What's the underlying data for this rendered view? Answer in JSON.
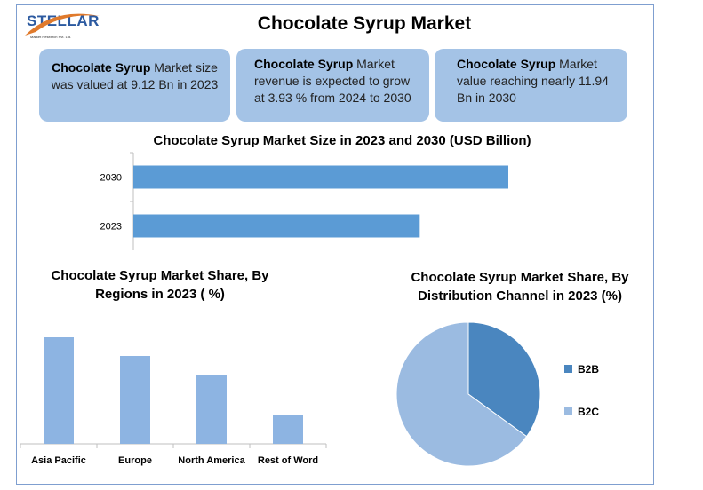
{
  "logo": {
    "name": "STELLAR",
    "tagline": "Market Research Pvt. Ltd."
  },
  "title": "Chocolate Syrup Market",
  "cards": [
    {
      "bold": "Chocolate Syrup",
      "text": " Market size was valued at 9.12 Bn in 2023"
    },
    {
      "bold": "Chocolate Syrup",
      "text": " Market revenue is expected to grow at 3.93 % from 2024 to 2030"
    },
    {
      "bold": "Chocolate Syrup",
      "text": " Market value reaching nearly 11.94 Bn in 2030"
    }
  ],
  "colors": {
    "bar_blue": "#5b9bd5",
    "region_bar": "#8db4e2",
    "b2b": "#4a86bf",
    "b2c": "#9bbbe1"
  },
  "chart_data": [
    {
      "type": "bar",
      "orientation": "horizontal",
      "title": "Chocolate Syrup Market Size in 2023 and 2030 (USD Billion)",
      "categories": [
        "2030",
        "2023"
      ],
      "values": [
        11.94,
        9.12
      ],
      "xlim": [
        0,
        14
      ],
      "grid": false
    },
    {
      "type": "bar",
      "title": "Chocolate Syrup Market Share, By Regions in 2023 ( %)",
      "categories": [
        "Asia Pacific",
        "Europe",
        "North America",
        "Rest of Word"
      ],
      "values": [
        40,
        33,
        26,
        11
      ],
      "ylim": [
        0,
        45
      ],
      "grid": false
    },
    {
      "type": "pie",
      "title": "Chocolate Syrup Market Share, By Distribution Channel in 2023 (%)",
      "labels": [
        "B2B",
        "B2C"
      ],
      "values": [
        35,
        65
      ],
      "legend": "right"
    }
  ]
}
